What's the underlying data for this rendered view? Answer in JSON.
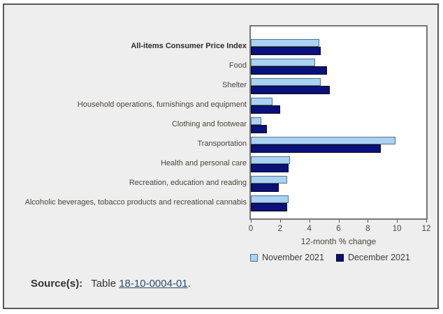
{
  "window": {
    "background": "#ffffff"
  },
  "card": {
    "background": "#EEEEEE",
    "border_color": "#57585A"
  },
  "chart_data": {
    "type": "bar",
    "orientation": "horizontal",
    "categories": [
      "All-items Consumer Price Index",
      "Food",
      "Shelter",
      "Household operations, furnishings and equipment",
      "Clothing and footwear",
      "Transportation",
      "Health and personal care",
      "Recreation, education and reading",
      "Alcoholic beverages, tobacco products and recreational cannabis"
    ],
    "emphasized_category_index": 0,
    "series": [
      {
        "name": "November 2021",
        "color": "#A9D2F3",
        "border_color": "#55718B",
        "values": [
          4.7,
          4.4,
          4.8,
          1.5,
          0.7,
          9.9,
          2.7,
          2.5,
          2.6
        ]
      },
      {
        "name": "December 2021",
        "color": "#0A107C",
        "border_color": "#0A0A14",
        "values": [
          4.8,
          5.2,
          5.4,
          2.0,
          1.1,
          8.9,
          2.6,
          1.9,
          2.5
        ]
      }
    ],
    "xlabel": "12-month % change",
    "xlim": [
      0,
      12
    ],
    "xticks": [
      0,
      2,
      4,
      6,
      8,
      10,
      12
    ],
    "grid": false,
    "legend_position": "bottom",
    "plot_background": "#FFFFFF",
    "plot_border_color": "#767676",
    "tick_color": "#4F4F4F",
    "text_color": "#4A443C"
  },
  "source": {
    "label": "Source(s):",
    "prefix": "Table",
    "link_text": "18-10-0004-01",
    "suffix": "."
  }
}
